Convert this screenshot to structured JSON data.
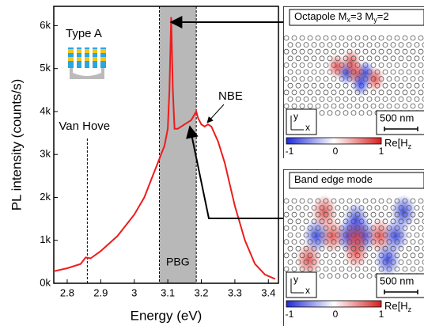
{
  "chart_data": {
    "type": "line",
    "x_label": "Energy (eV)",
    "y_label": "PL intensity (counts/s)",
    "xlim": [
      2.76,
      3.43
    ],
    "ylim": [
      0,
      6.45
    ],
    "xticks": [
      2.8,
      2.9,
      3.0,
      3.1,
      3.2,
      3.3,
      3.4
    ],
    "yticks": [
      {
        "value": 0,
        "label": "0k"
      },
      {
        "value": 1,
        "label": "1k"
      },
      {
        "value": 2,
        "label": "2k"
      },
      {
        "value": 3,
        "label": "3k"
      },
      {
        "value": 4,
        "label": "4k"
      },
      {
        "value": 5,
        "label": "5k"
      },
      {
        "value": 6,
        "label": "6k"
      }
    ],
    "series": [
      {
        "color": "#ee1c1c",
        "x": [
          2.76,
          2.8,
          2.84,
          2.855,
          2.87,
          2.9,
          2.95,
          3.0,
          3.03,
          3.05,
          3.07,
          3.08,
          3.09,
          3.1,
          3.105,
          3.11,
          3.115,
          3.12,
          3.13,
          3.15,
          3.17,
          3.185,
          3.19,
          3.2,
          3.21,
          3.22,
          3.23,
          3.25,
          3.27,
          3.3,
          3.33,
          3.36,
          3.39,
          3.42
        ],
        "values": [
          0.28,
          0.35,
          0.45,
          0.6,
          0.58,
          0.75,
          1.1,
          1.6,
          2.0,
          2.4,
          2.8,
          3.0,
          3.2,
          3.6,
          4.5,
          6.2,
          4.5,
          3.6,
          3.6,
          3.7,
          3.8,
          4.0,
          3.85,
          3.7,
          3.65,
          3.7,
          3.65,
          3.3,
          2.8,
          1.8,
          1.0,
          0.45,
          0.2,
          0.1
        ]
      }
    ],
    "band": {
      "label": "PBG",
      "x": [
        3.075,
        3.185
      ]
    },
    "annotations": [
      {
        "text": "Van Hove",
        "x": 2.86
      },
      {
        "text": "NBE"
      },
      {
        "text": "Type A"
      }
    ],
    "insets": [
      {
        "title_parts": [
          "Octapole M",
          "x",
          "=3 M",
          "y",
          "=2"
        ],
        "scale_bar": "500 nm",
        "axes": [
          "y",
          "x"
        ],
        "colorbar_ticks": [
          "-1",
          "0",
          "1"
        ],
        "colorbar_label": [
          "Re[H",
          "z"
        ]
      },
      {
        "title_parts": [
          "Band edge mode"
        ],
        "scale_bar": "500 nm",
        "axes": [
          "y",
          "x"
        ],
        "colorbar_ticks": [
          "-1",
          "0",
          "1"
        ],
        "colorbar_label": [
          "Re[H",
          "z"
        ]
      }
    ]
  }
}
